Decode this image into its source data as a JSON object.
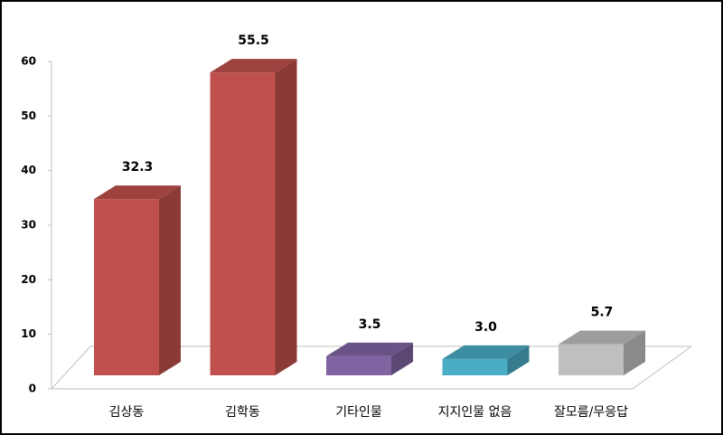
{
  "chart_data": {
    "type": "bar3d",
    "categories": [
      "김상동",
      "김학동",
      "기타인물",
      "지지인물 없음",
      "잘모름/무응답"
    ],
    "values": [
      32.3,
      55.5,
      3.5,
      3.0,
      5.7
    ],
    "value_labels": [
      "32.3",
      "55.5",
      "3.5",
      "3.0",
      "5.7"
    ],
    "colors": [
      "#c0504d",
      "#c0504d",
      "#8064a2",
      "#4bacc6",
      "#bfbfbf"
    ],
    "ylim": [
      0,
      60
    ],
    "yticks": [
      0,
      10,
      20,
      30,
      40,
      50,
      60
    ]
  }
}
